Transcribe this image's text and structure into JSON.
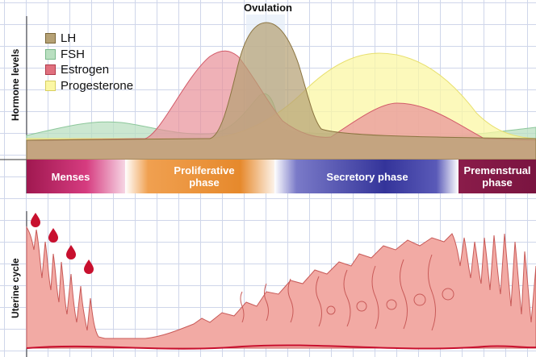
{
  "title": "Ovulation",
  "axes": {
    "hormone_label": "Hormone levels",
    "uterine_label": "Uterine cycle"
  },
  "legend": [
    {
      "label": "LH",
      "color": "#b09a6e"
    },
    {
      "label": "FSH",
      "color": "#9ccfa8"
    },
    {
      "label": "Estrogen",
      "color": "#e0707e"
    },
    {
      "label": "Progesterone",
      "color": "#f5f08a"
    }
  ],
  "phases": [
    {
      "label": "Menses",
      "color": "#b01e5a"
    },
    {
      "label": "Proliferative phase",
      "color": "#e68a2e"
    },
    {
      "label": "Secretory phase",
      "color": "#3a3a9a"
    },
    {
      "label": "Premenstrual phase",
      "color": "#8a1c4a"
    }
  ],
  "colors": {
    "tissue": "#f0a09a",
    "tissue_stroke": "#c0504e",
    "blood": "#c8102e",
    "grid": "#cfd6ea"
  }
}
